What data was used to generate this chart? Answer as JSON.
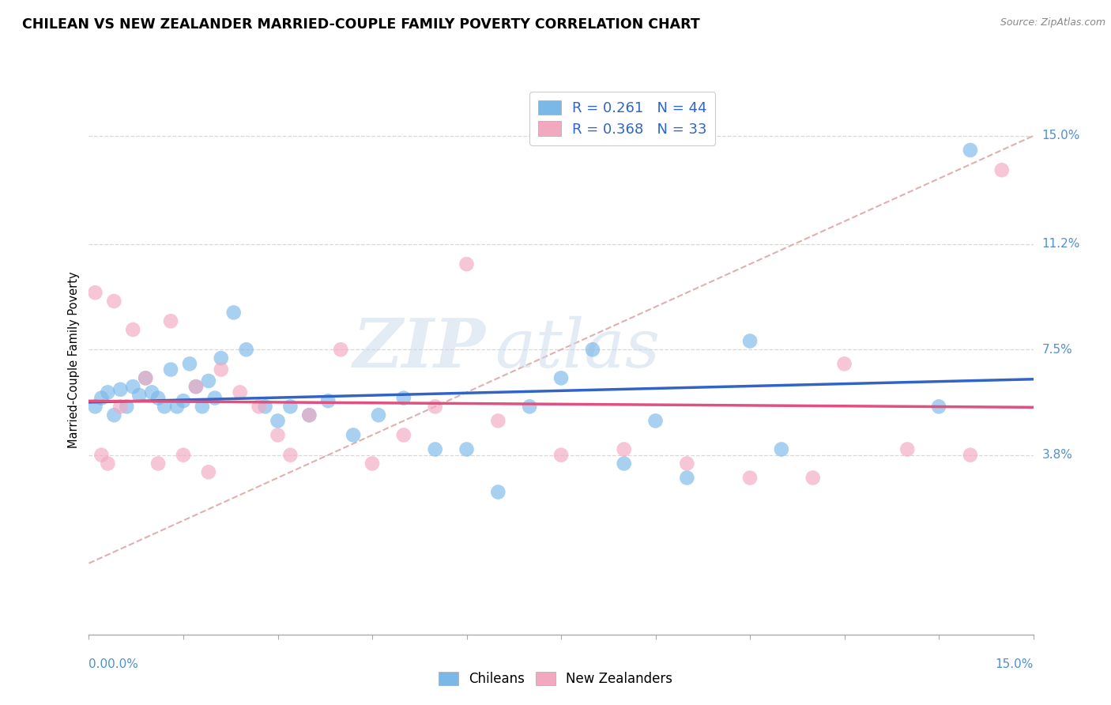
{
  "title": "CHILEAN VS NEW ZEALANDER MARRIED-COUPLE FAMILY POVERTY CORRELATION CHART",
  "source": "Source: ZipAtlas.com",
  "ylabel": "Married-Couple Family Poverty",
  "ytick_labels": [
    "3.8%",
    "7.5%",
    "11.2%",
    "15.0%"
  ],
  "ytick_values": [
    3.8,
    7.5,
    11.2,
    15.0
  ],
  "xmin": 0.0,
  "xmax": 15.0,
  "ymin": -2.5,
  "ymax": 16.8,
  "legend_R1": "R = 0.261",
  "legend_N1": "N = 44",
  "legend_R2": "R = 0.368",
  "legend_N2": "N = 33",
  "watermark_zip": "ZIP",
  "watermark_atlas": "atlas",
  "blue_color": "#7ab8e8",
  "pink_color": "#f4a8c0",
  "blue_line_color": "#3264c8",
  "pink_line_color": "#e05080",
  "dashed_line_color": "#e0b0b0",
  "grid_color": "#d8d8d8",
  "chileans_x": [
    0.1,
    0.2,
    0.3,
    0.4,
    0.5,
    0.6,
    0.7,
    0.8,
    0.9,
    1.0,
    1.1,
    1.2,
    1.3,
    1.4,
    1.5,
    1.6,
    1.7,
    1.8,
    1.9,
    2.0,
    2.1,
    2.3,
    2.5,
    2.8,
    3.0,
    3.2,
    3.5,
    3.8,
    4.2,
    4.6,
    5.0,
    5.5,
    6.0,
    6.5,
    7.0,
    7.5,
    8.0,
    8.5,
    9.0,
    9.5,
    10.5,
    11.0,
    13.5,
    14.0
  ],
  "chileans_y": [
    5.5,
    5.8,
    6.0,
    5.2,
    6.1,
    5.5,
    6.2,
    5.9,
    6.5,
    6.0,
    5.8,
    5.5,
    6.8,
    5.5,
    5.7,
    7.0,
    6.2,
    5.5,
    6.4,
    5.8,
    7.2,
    8.8,
    7.5,
    5.5,
    5.0,
    5.5,
    5.2,
    5.7,
    4.5,
    5.2,
    5.8,
    4.0,
    4.0,
    2.5,
    5.5,
    6.5,
    7.5,
    3.5,
    5.0,
    3.0,
    7.8,
    4.0,
    5.5,
    14.5
  ],
  "new_zealanders_x": [
    0.1,
    0.2,
    0.3,
    0.4,
    0.5,
    0.7,
    0.9,
    1.1,
    1.3,
    1.5,
    1.7,
    1.9,
    2.1,
    2.4,
    2.7,
    3.0,
    3.5,
    4.0,
    4.5,
    5.0,
    5.5,
    6.5,
    7.5,
    8.5,
    9.5,
    10.5,
    11.5,
    12.0,
    13.0,
    14.0,
    14.5,
    6.0,
    3.2
  ],
  "new_zealanders_y": [
    9.5,
    3.8,
    3.5,
    9.2,
    5.5,
    8.2,
    6.5,
    3.5,
    8.5,
    3.8,
    6.2,
    3.2,
    6.8,
    6.0,
    5.5,
    4.5,
    5.2,
    7.5,
    3.5,
    4.5,
    5.5,
    5.0,
    3.8,
    4.0,
    3.5,
    3.0,
    3.0,
    7.0,
    4.0,
    3.8,
    13.8,
    10.5,
    3.8
  ]
}
